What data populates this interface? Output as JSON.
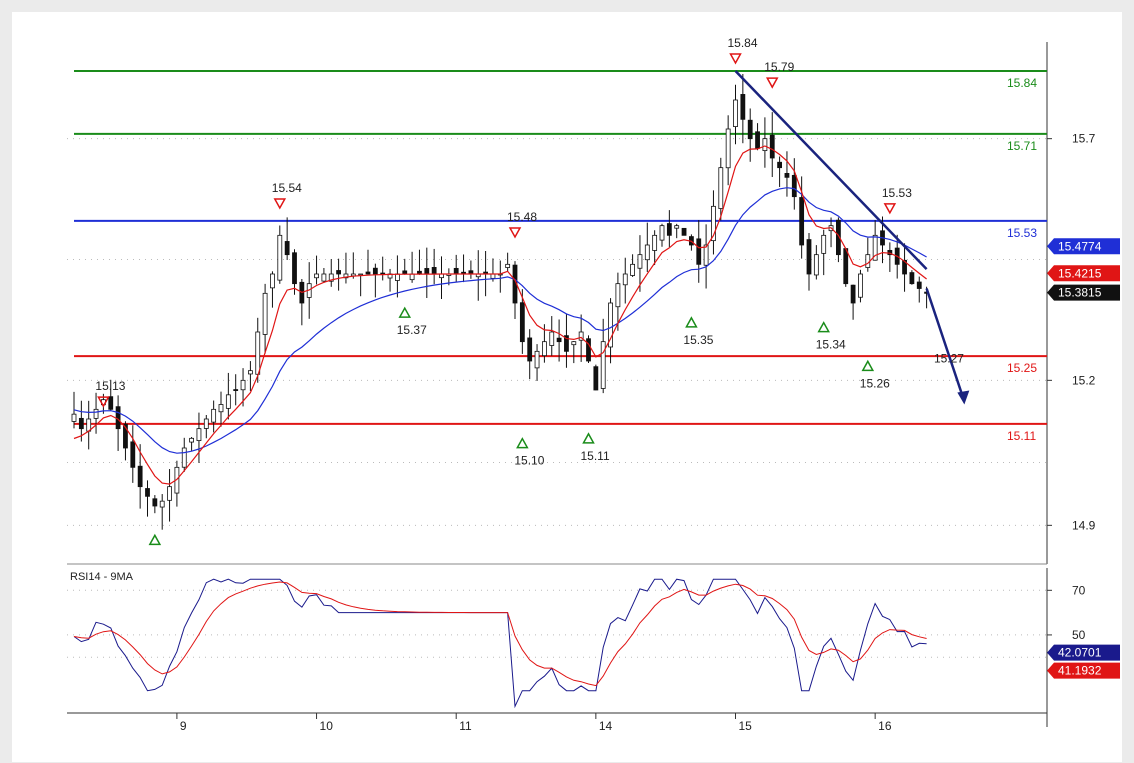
{
  "chart_data": [
    {
      "type": "candlestick",
      "ylim": [
        14.82,
        15.9
      ],
      "y_ticks": [
        "15.7",
        "15.2",
        "14.9"
      ],
      "x_ticks": [
        "9",
        "10",
        "11",
        "14",
        "15",
        "16"
      ],
      "price_close": [
        15.13,
        15.1,
        15.12,
        15.14,
        15.16,
        15.14,
        15.1,
        15.06,
        15.02,
        14.98,
        14.96,
        14.94,
        14.95,
        14.98,
        15.02,
        15.06,
        15.08,
        15.1,
        15.12,
        15.14,
        15.15,
        15.17,
        15.18,
        15.2,
        15.22,
        15.3,
        15.38,
        15.42,
        15.5,
        15.46,
        15.4,
        15.36,
        15.4,
        15.42,
        15.42,
        15.42,
        15.42,
        15.42,
        15.42,
        15.42,
        15.42,
        15.42,
        15.42,
        15.42,
        15.42,
        15.42,
        15.42,
        15.42,
        15.42,
        15.42,
        15.42,
        15.42,
        15.42,
        15.42,
        15.42,
        15.42,
        15.42,
        15.42,
        15.42,
        15.44,
        15.36,
        15.28,
        15.24,
        15.26,
        15.28,
        15.3,
        15.28,
        15.26,
        15.28,
        15.3,
        15.24,
        15.18,
        15.28,
        15.36,
        15.4,
        15.42,
        15.44,
        15.46,
        15.48,
        15.5,
        15.52,
        15.5,
        15.52,
        15.5,
        15.48,
        15.44,
        15.48,
        15.56,
        15.64,
        15.72,
        15.78,
        15.74,
        15.7,
        15.68,
        15.7,
        15.66,
        15.64,
        15.62,
        15.58,
        15.48,
        15.42,
        15.46,
        15.5,
        15.52,
        15.46,
        15.4,
        15.36,
        15.42,
        15.46,
        15.5,
        15.48,
        15.46,
        15.44,
        15.42,
        15.4,
        15.39,
        15.38
      ],
      "ma_fast_start": 15.06,
      "ma_slow_start": 15.14,
      "levels": [
        {
          "value": 15.84,
          "label": "15.84",
          "color": "#1a8c1a"
        },
        {
          "value": 15.71,
          "label": "15.71",
          "color": "#1a8c1a"
        },
        {
          "value": 15.53,
          "label": "15.53",
          "color": "#1f2fd6"
        },
        {
          "value": 15.25,
          "label": "15.25",
          "color": "#e01515"
        },
        {
          "value": 15.11,
          "label": "15.11",
          "color": "#e01515"
        }
      ],
      "peaks": [
        {
          "x": 4,
          "value": 15.13,
          "label": "15.13",
          "type": "high"
        },
        {
          "x": 28,
          "value": 15.54,
          "label": "15.54",
          "type": "high"
        },
        {
          "x": 60,
          "value": 15.48,
          "label": "15.48",
          "type": "high"
        },
        {
          "x": 90,
          "value": 15.84,
          "label": "15.84",
          "type": "high"
        },
        {
          "x": 95,
          "value": 15.79,
          "label": "15.79",
          "type": "high"
        },
        {
          "x": 111,
          "value": 15.53,
          "label": "15.53",
          "type": "high"
        }
      ],
      "troughs": [
        {
          "x": 11,
          "value": 14.9,
          "label": "",
          "type": "low"
        },
        {
          "x": 45,
          "value": 15.37,
          "label": "15.37",
          "type": "low"
        },
        {
          "x": 61,
          "value": 15.1,
          "label": "15.10",
          "type": "low"
        },
        {
          "x": 70,
          "value": 15.11,
          "label": "15.11",
          "type": "low"
        },
        {
          "x": 84,
          "value": 15.35,
          "label": "15.35",
          "type": "low"
        },
        {
          "x": 102,
          "value": 15.34,
          "label": "15.34",
          "type": "low"
        },
        {
          "x": 108,
          "value": 15.26,
          "label": "15.26",
          "type": "low"
        }
      ],
      "extra_label": {
        "value": 15.27,
        "label": "15.27"
      },
      "price_tags": [
        {
          "value": 15.4774,
          "label": "15.4774",
          "color": "#1f2fd6"
        },
        {
          "value": 15.4215,
          "label": "15.4215",
          "color": "#e01515"
        },
        {
          "value": 15.3815,
          "label": "15.3815",
          "color": "#111111"
        }
      ],
      "trendline": {
        "from": [
          90,
          15.84
        ],
        "to": [
          116,
          15.43
        ]
      },
      "projection_arrow": {
        "from": [
          116,
          15.39
        ],
        "to": [
          121,
          15.15
        ]
      }
    },
    {
      "type": "line",
      "title": "RSI14 - 9MA",
      "ylim": [
        15,
        80
      ],
      "y_ticks": [
        "70",
        "50"
      ],
      "rsi_start": 48,
      "flat_value": 60,
      "flat_range": [
        36,
        60
      ],
      "dip_index": 60,
      "dip_value": 18,
      "value_tags": [
        {
          "value": 42.0701,
          "label": "42.0701",
          "color": "#1a1a8c"
        },
        {
          "value": 41.1932,
          "label": "41.1932",
          "color": "#e01515"
        }
      ]
    }
  ]
}
